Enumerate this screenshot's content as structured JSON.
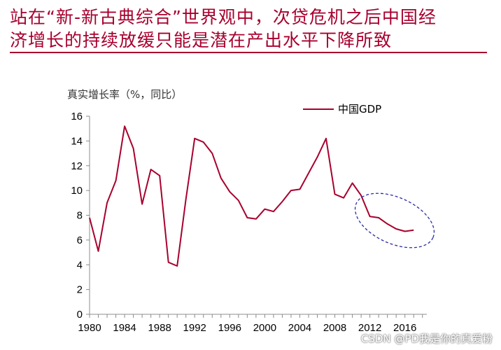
{
  "page": {
    "title_line1": "站在“新-新古典综合”世界观中，次贷危机之后中国经",
    "title_line2": "济增长的持续放缓只能是潜在产出水平下降所致",
    "watermark": "CSDN @PD我是你的真爱粉"
  },
  "colors": {
    "accent": "#a8002e",
    "line": "#a8002e",
    "ellipse": "#2a2aa8"
  },
  "chart_data": {
    "type": "line",
    "title": "",
    "ylabel": "真实增长率（%，同比）",
    "xlabel": "",
    "xlim": [
      1980,
      2018.5
    ],
    "ylim": [
      0,
      16
    ],
    "x_ticks": [
      1980,
      1984,
      1988,
      1992,
      1996,
      2000,
      2004,
      2008,
      2012,
      2016
    ],
    "y_ticks": [
      0,
      2,
      4,
      6,
      8,
      10,
      12,
      14,
      16
    ],
    "grid": false,
    "legend": "top-right",
    "annotations": [
      "dashed ellipse highlighting 2011-2017"
    ],
    "series": [
      {
        "name": "中国GDP",
        "x": [
          1980,
          1981,
          1982,
          1983,
          1984,
          1985,
          1986,
          1987,
          1988,
          1989,
          1990,
          1991,
          1992,
          1993,
          1994,
          1995,
          1996,
          1997,
          1998,
          1999,
          2000,
          2001,
          2002,
          2003,
          2004,
          2005,
          2006,
          2007,
          2008,
          2009,
          2010,
          2011,
          2012,
          2013,
          2014,
          2015,
          2016,
          2017
        ],
        "values": [
          7.8,
          5.1,
          9.0,
          10.8,
          15.2,
          13.4,
          8.9,
          11.7,
          11.2,
          4.2,
          3.9,
          9.3,
          14.2,
          13.9,
          13.0,
          11.0,
          9.9,
          9.2,
          7.8,
          7.7,
          8.5,
          8.3,
          9.1,
          10.0,
          10.1,
          11.4,
          12.7,
          14.2,
          9.7,
          9.4,
          10.6,
          9.6,
          7.9,
          7.8,
          7.3,
          6.9,
          6.7,
          6.8
        ]
      }
    ]
  }
}
